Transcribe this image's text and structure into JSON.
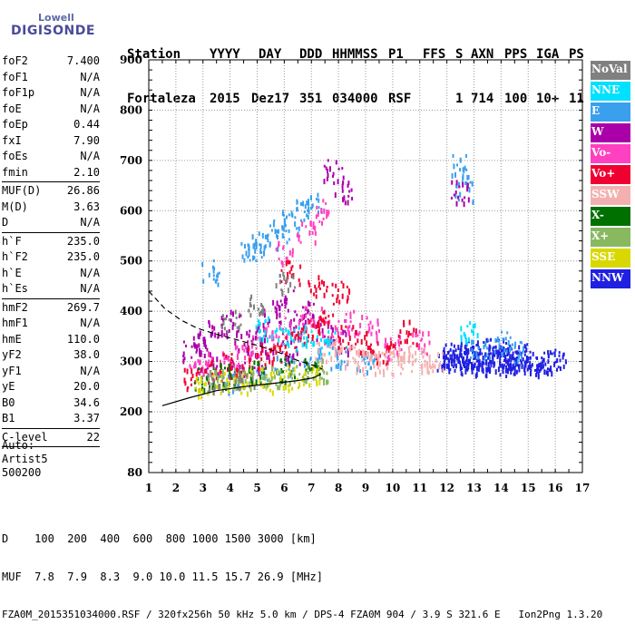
{
  "logo": {
    "line1": "Lowell",
    "line2": "DIGISONDE"
  },
  "header": {
    "row1": [
      "Station",
      "YYYY",
      "DAY",
      "DDD",
      "HHMMSS",
      "P1",
      "FFS",
      "S",
      "AXN",
      "PPS",
      "IGA",
      "PS"
    ],
    "row2": [
      "Fortaleza",
      "2015",
      "Dez17",
      "351",
      "034000",
      "RSF",
      "1",
      "714",
      "100",
      "10+",
      "11"
    ]
  },
  "params": [
    {
      "label": "foF2",
      "value": "7.400"
    },
    {
      "label": "foF1",
      "value": "N/A"
    },
    {
      "label": "foF1p",
      "value": "N/A"
    },
    {
      "label": "foE",
      "value": "N/A"
    },
    {
      "label": "foEp",
      "value": "0.44"
    },
    {
      "label": "fxI",
      "value": "7.90"
    },
    {
      "label": "foEs",
      "value": "N/A"
    },
    {
      "label": "fmin",
      "value": "2.10"
    },
    {
      "label": "MUF(D)",
      "value": "26.86"
    },
    {
      "label": "M(D)",
      "value": "3.63"
    },
    {
      "label": "D",
      "value": "N/A"
    },
    {
      "label": "h`F",
      "value": "235.0"
    },
    {
      "label": "h`F2",
      "value": "235.0"
    },
    {
      "label": "h`E",
      "value": "N/A"
    },
    {
      "label": "h`Es",
      "value": "N/A"
    },
    {
      "label": "hmF2",
      "value": "269.7"
    },
    {
      "label": "hmF1",
      "value": "N/A"
    },
    {
      "label": "hmE",
      "value": "110.0"
    },
    {
      "label": "yF2",
      "value": "38.0"
    },
    {
      "label": "yF1",
      "value": "N/A"
    },
    {
      "label": "yE",
      "value": "20.0"
    },
    {
      "label": "B0",
      "value": "34.6"
    },
    {
      "label": "B1",
      "value": "3.37"
    },
    {
      "label": "C-level",
      "value": "22"
    }
  ],
  "auto": {
    "line1": "Auto:",
    "line2": "Artist5",
    "line3": "500200"
  },
  "legend": [
    {
      "label": "NoVal",
      "color": "#808080"
    },
    {
      "label": "NNE",
      "color": "#00e0ff"
    },
    {
      "label": "E",
      "color": "#3aa0ee"
    },
    {
      "label": "W",
      "color": "#aa00aa"
    },
    {
      "label": "Vo-",
      "color": "#ff40c0"
    },
    {
      "label": "Vo+",
      "color": "#f00030"
    },
    {
      "label": "SSW",
      "color": "#f4b0b0"
    },
    {
      "label": "X-",
      "color": "#007000"
    },
    {
      "label": "X+",
      "color": "#88b860"
    },
    {
      "label": "SSE",
      "color": "#d8d800"
    },
    {
      "label": "NNW",
      "color": "#2020e0"
    }
  ],
  "footer": {
    "line1": "D    100  200  400  600  800 1000 1500 3000 [km]",
    "line2": "MUF  7.8  7.9  8.3  9.0 10.0 11.5 15.7 26.9 [MHz]",
    "line3": "FZA0M_2015351034000.RSF / 320fx256h 50 kHz 5.0 km / DPS-4 FZA0M 904 / 3.9 S 321.6 E   Ion2Png 1.3.20"
  },
  "chart_data": {
    "type": "scatter",
    "xlim": [
      1,
      17
    ],
    "ylim": [
      80,
      900
    ],
    "x_ticks": [
      "1",
      "2",
      "3",
      "4",
      "5",
      "6",
      "7",
      "8",
      "9",
      "10",
      "11",
      "12",
      "13",
      "14",
      "15",
      "16",
      "17"
    ],
    "y_ticks": [
      "80",
      "200",
      "300",
      "400",
      "500",
      "600",
      "700",
      "800",
      "900"
    ],
    "grid": true,
    "legend_placement": "right",
    "series": [
      {
        "name": "NNW",
        "points": [
          [
            12.0,
            305
          ],
          [
            12.4,
            310
          ],
          [
            12.8,
            308
          ],
          [
            13.2,
            312
          ],
          [
            13.6,
            306
          ],
          [
            14.0,
            310
          ],
          [
            14.4,
            304
          ],
          [
            14.8,
            300
          ],
          [
            15.2,
            298
          ],
          [
            15.6,
            300
          ],
          [
            16.0,
            302
          ],
          [
            12.2,
            318
          ],
          [
            13.0,
            320
          ],
          [
            13.8,
            325
          ],
          [
            14.6,
            315
          ],
          [
            12.6,
            300
          ],
          [
            13.4,
            298
          ],
          [
            14.2,
            296
          ]
        ]
      },
      {
        "name": "E",
        "points": [
          [
            3.3,
            480
          ],
          [
            4.6,
            520
          ],
          [
            5.0,
            530
          ],
          [
            5.4,
            545
          ],
          [
            5.8,
            560
          ],
          [
            6.2,
            580
          ],
          [
            6.6,
            600
          ],
          [
            7.0,
            615
          ],
          [
            4.0,
            260
          ],
          [
            5.0,
            275
          ],
          [
            6.0,
            290
          ],
          [
            7.0,
            305
          ],
          [
            8.0,
            310
          ],
          [
            9.0,
            305
          ],
          [
            13.2,
            330
          ],
          [
            14.0,
            340
          ],
          [
            14.5,
            320
          ],
          [
            12.6,
            640
          ],
          [
            12.5,
            690
          ]
        ]
      },
      {
        "name": "W",
        "points": [
          [
            2.5,
            320
          ],
          [
            3.0,
            340
          ],
          [
            3.5,
            360
          ],
          [
            4.0,
            380
          ],
          [
            4.5,
            340
          ],
          [
            5.0,
            360
          ],
          [
            5.5,
            400
          ],
          [
            6.0,
            420
          ],
          [
            6.5,
            380
          ],
          [
            7.0,
            400
          ],
          [
            7.5,
            360
          ],
          [
            8.0,
            340
          ],
          [
            3.2,
            300
          ],
          [
            4.2,
            290
          ],
          [
            5.2,
            300
          ],
          [
            6.2,
            320
          ],
          [
            12.5,
            640
          ],
          [
            7.8,
            680
          ],
          [
            8.2,
            640
          ]
        ]
      },
      {
        "name": "Vo-",
        "points": [
          [
            2.8,
            290
          ],
          [
            3.5,
            300
          ],
          [
            4.2,
            310
          ],
          [
            4.9,
            330
          ],
          [
            5.6,
            350
          ],
          [
            6.3,
            370
          ],
          [
            7.0,
            390
          ],
          [
            7.7,
            360
          ],
          [
            8.4,
            380
          ],
          [
            9.1,
            370
          ],
          [
            10.0,
            330
          ],
          [
            11.0,
            340
          ],
          [
            6.0,
            520
          ],
          [
            6.8,
            560
          ],
          [
            7.4,
            600
          ]
        ]
      },
      {
        "name": "Vo+",
        "points": [
          [
            2.6,
            270
          ],
          [
            3.4,
            285
          ],
          [
            4.1,
            295
          ],
          [
            4.8,
            305
          ],
          [
            5.5,
            320
          ],
          [
            6.2,
            340
          ],
          [
            6.9,
            360
          ],
          [
            7.6,
            380
          ],
          [
            8.3,
            350
          ],
          [
            9.0,
            340
          ],
          [
            9.7,
            320
          ],
          [
            10.5,
            360
          ],
          [
            6.2,
            480
          ],
          [
            7.2,
            450
          ],
          [
            8.0,
            440
          ]
        ]
      },
      {
        "name": "SSW",
        "points": [
          [
            8.5,
            310
          ],
          [
            9.0,
            300
          ],
          [
            9.5,
            305
          ],
          [
            10.0,
            300
          ],
          [
            10.5,
            310
          ],
          [
            11.0,
            305
          ],
          [
            11.5,
            300
          ],
          [
            7.5,
            320
          ],
          [
            8.0,
            330
          ]
        ]
      },
      {
        "name": "X-",
        "points": [
          [
            3.0,
            270
          ],
          [
            4.0,
            275
          ],
          [
            5.0,
            280
          ],
          [
            6.0,
            285
          ],
          [
            7.0,
            290
          ]
        ]
      },
      {
        "name": "X+",
        "points": [
          [
            3.5,
            265
          ],
          [
            4.5,
            270
          ],
          [
            5.5,
            275
          ],
          [
            6.5,
            280
          ],
          [
            7.3,
            285
          ]
        ]
      },
      {
        "name": "SSE",
        "points": [
          [
            3.0,
            255
          ],
          [
            3.8,
            258
          ],
          [
            4.6,
            262
          ],
          [
            5.4,
            265
          ],
          [
            6.2,
            268
          ],
          [
            7.0,
            272
          ]
        ]
      },
      {
        "name": "NoVal",
        "points": [
          [
            4.0,
            380
          ],
          [
            5.0,
            420
          ],
          [
            6.0,
            460
          ],
          [
            3.5,
            260
          ],
          [
            4.5,
            265
          ]
        ]
      },
      {
        "name": "NNE",
        "points": [
          [
            5.2,
            370
          ],
          [
            6.0,
            360
          ],
          [
            6.8,
            350
          ],
          [
            7.5,
            340
          ],
          [
            12.8,
            360
          ]
        ]
      }
    ],
    "profile_solid": [
      [
        1.5,
        212
      ],
      [
        2.5,
        228
      ],
      [
        3.5,
        242
      ],
      [
        4.5,
        250
      ],
      [
        5.5,
        256
      ],
      [
        6.5,
        262
      ],
      [
        7.1,
        268
      ],
      [
        7.35,
        275
      ]
    ],
    "profile_dashed": [
      [
        1.0,
        440
      ],
      [
        1.6,
        405
      ],
      [
        2.2,
        382
      ],
      [
        2.8,
        366
      ],
      [
        3.5,
        354
      ],
      [
        4.2,
        344
      ],
      [
        5.0,
        332
      ],
      [
        5.8,
        318
      ],
      [
        6.5,
        302
      ],
      [
        7.1,
        292
      ],
      [
        7.4,
        285
      ]
    ]
  }
}
